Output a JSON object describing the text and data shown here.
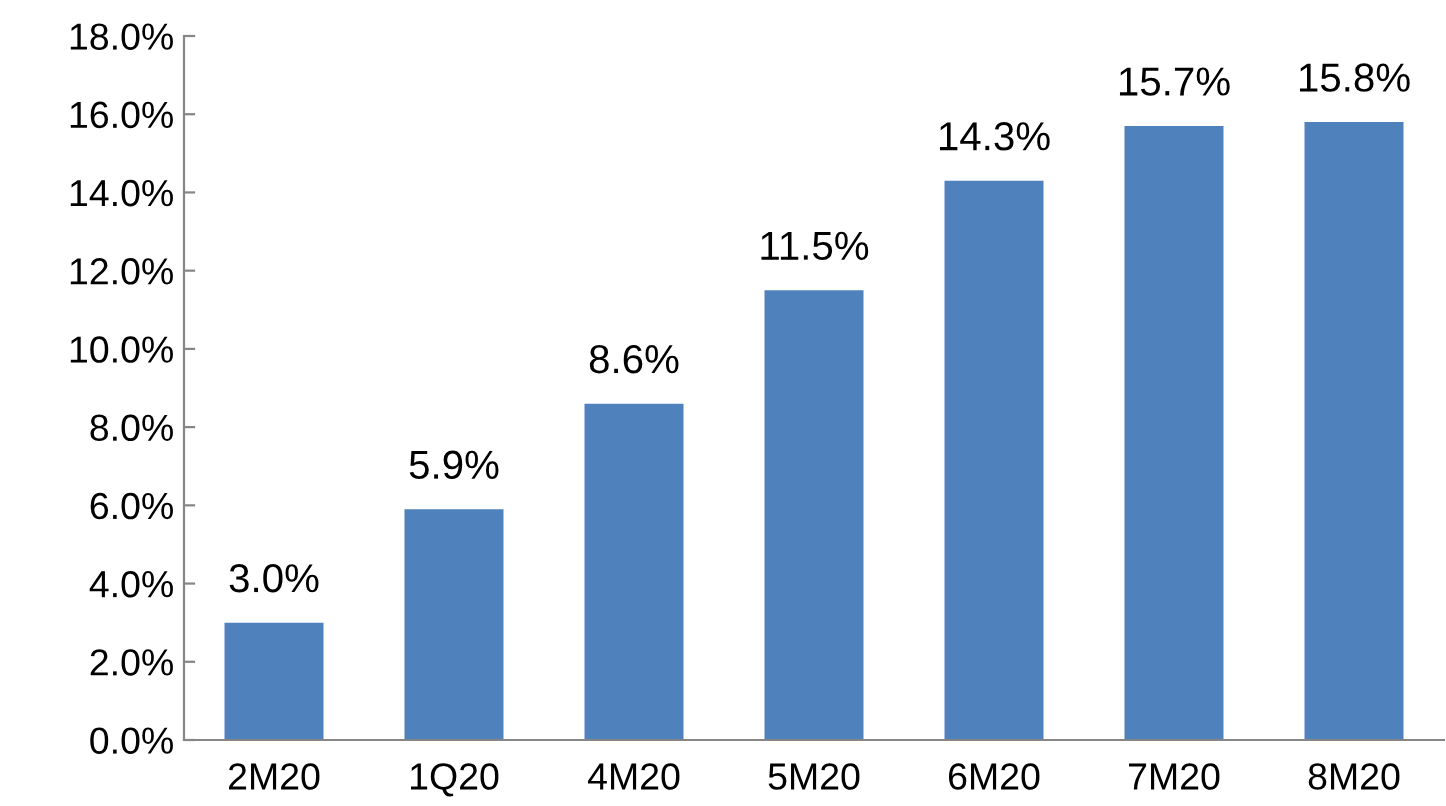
{
  "chart_data": {
    "type": "bar",
    "categories": [
      "2M20",
      "1Q20",
      "4M20",
      "5M20",
      "6M20",
      "7M20",
      "8M20"
    ],
    "values": [
      3.0,
      5.9,
      8.6,
      11.5,
      14.3,
      15.7,
      15.8
    ],
    "value_labels": [
      "3.0%",
      "5.9%",
      "8.6%",
      "11.5%",
      "14.3%",
      "15.7%",
      "15.8%"
    ],
    "color": "#4f81bd",
    "ylim": [
      0,
      18
    ],
    "yticks": [
      {
        "value": 0,
        "label": "0.0%"
      },
      {
        "value": 2,
        "label": "2.0%"
      },
      {
        "value": 4,
        "label": "4.0%"
      },
      {
        "value": 6,
        "label": "6.0%"
      },
      {
        "value": 8,
        "label": "8.0%"
      },
      {
        "value": 10,
        "label": "10.0%"
      },
      {
        "value": 12,
        "label": "12.0%"
      },
      {
        "value": 14,
        "label": "14.0%"
      },
      {
        "value": 16,
        "label": "16.0%"
      },
      {
        "value": 18,
        "label": "18.0%"
      }
    ],
    "grid": false,
    "legend": false
  }
}
